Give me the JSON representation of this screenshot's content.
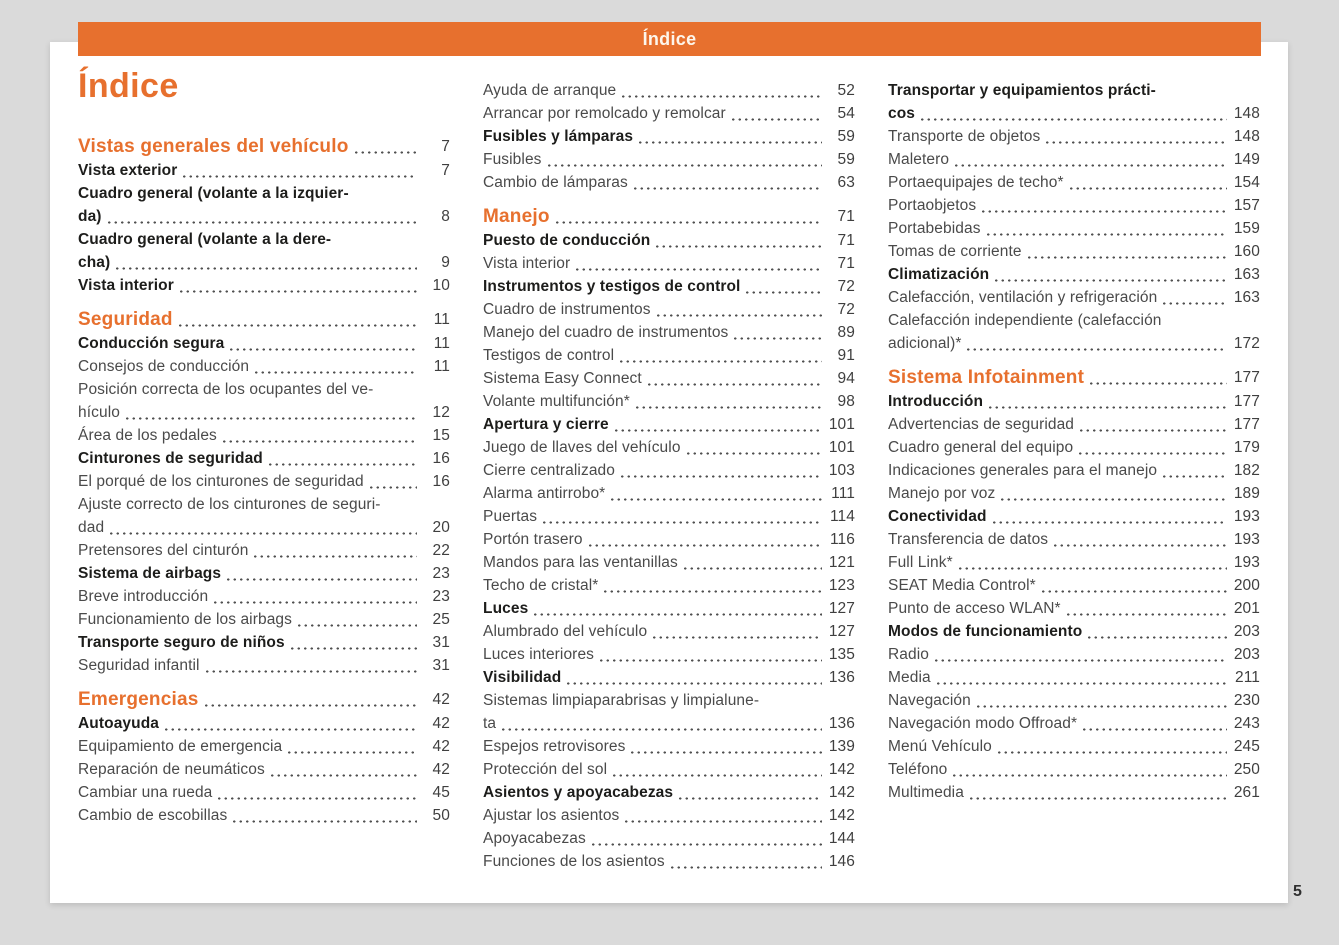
{
  "header_bar": {
    "label": "Índice"
  },
  "title": "Índice",
  "footer_page_number": "5",
  "colors": {
    "accent_orange": "#E7702E",
    "header_bar_text": "#FDF6EC",
    "body_text": "#4A4A4A",
    "bold_text": "#1D1D1B",
    "leader_dots": "#4F4F4F",
    "background": "#DADADA",
    "sheet": "#FFFFFF"
  },
  "columns": [
    {
      "blocks": [
        {
          "header": {
            "lines": [
              "Vistas generales del vehículo"
            ],
            "page": "7"
          },
          "entries": [
            {
              "lines": [
                "Vista exterior"
              ],
              "page": "7",
              "bold": true
            },
            {
              "lines": [
                "Cuadro general (volante a la izquier-",
                "da)"
              ],
              "page": "8",
              "bold": true
            },
            {
              "lines": [
                "Cuadro general (volante a la dere-",
                "cha)"
              ],
              "page": "9",
              "bold": true
            },
            {
              "lines": [
                "Vista interior"
              ],
              "page": "10",
              "bold": true
            }
          ]
        },
        {
          "header": {
            "lines": [
              "Seguridad"
            ],
            "page": "11"
          },
          "entries": [
            {
              "lines": [
                "Conducción segura"
              ],
              "page": "11",
              "bold": true
            },
            {
              "lines": [
                "Consejos de conducción"
              ],
              "page": "11"
            },
            {
              "lines": [
                "Posición correcta de los ocupantes del ve-",
                "hículo"
              ],
              "page": "12"
            },
            {
              "lines": [
                "Área de los pedales"
              ],
              "page": "15"
            },
            {
              "lines": [
                "Cinturones de seguridad"
              ],
              "page": "16",
              "bold": true
            },
            {
              "lines": [
                "El porqué de los cinturones de seguridad"
              ],
              "page": "16"
            },
            {
              "lines": [
                "Ajuste correcto de los cinturones de seguri-",
                "dad"
              ],
              "page": "20"
            },
            {
              "lines": [
                "Pretensores del cinturón"
              ],
              "page": "22"
            },
            {
              "lines": [
                "Sistema de airbags"
              ],
              "page": "23",
              "bold": true
            },
            {
              "lines": [
                "Breve introducción"
              ],
              "page": "23"
            },
            {
              "lines": [
                "Funcionamiento de los airbags"
              ],
              "page": "25"
            },
            {
              "lines": [
                "Transporte seguro de niños"
              ],
              "page": "31",
              "bold": true
            },
            {
              "lines": [
                "Seguridad infantil"
              ],
              "page": "31"
            }
          ]
        },
        {
          "header": {
            "lines": [
              "Emergencias"
            ],
            "page": "42"
          },
          "entries": [
            {
              "lines": [
                "Autoayuda"
              ],
              "page": "42",
              "bold": true
            },
            {
              "lines": [
                "Equipamiento de emergencia"
              ],
              "page": "42"
            },
            {
              "lines": [
                "Reparación de neumáticos"
              ],
              "page": "42"
            },
            {
              "lines": [
                "Cambiar una rueda"
              ],
              "page": "45"
            },
            {
              "lines": [
                "Cambio de escobillas"
              ],
              "page": "50"
            }
          ]
        }
      ]
    },
    {
      "blocks": [
        {
          "header": null,
          "entries": [
            {
              "lines": [
                "Ayuda de arranque"
              ],
              "page": "52"
            },
            {
              "lines": [
                "Arrancar por remolcado y remolcar"
              ],
              "page": "54"
            },
            {
              "lines": [
                "Fusibles y lámparas"
              ],
              "page": "59",
              "bold": true
            },
            {
              "lines": [
                "Fusibles"
              ],
              "page": "59"
            },
            {
              "lines": [
                "Cambio de lámparas"
              ],
              "page": "63"
            }
          ]
        },
        {
          "header": {
            "lines": [
              "Manejo"
            ],
            "page": "71"
          },
          "entries": [
            {
              "lines": [
                "Puesto de conducción"
              ],
              "page": "71",
              "bold": true
            },
            {
              "lines": [
                "Vista interior"
              ],
              "page": "71"
            },
            {
              "lines": [
                "Instrumentos y testigos de control"
              ],
              "page": "72",
              "bold": true
            },
            {
              "lines": [
                "Cuadro de instrumentos"
              ],
              "page": "72"
            },
            {
              "lines": [
                "Manejo del cuadro de instrumentos"
              ],
              "page": "89"
            },
            {
              "lines": [
                "Testigos de control"
              ],
              "page": "91"
            },
            {
              "lines": [
                "Sistema Easy Connect"
              ],
              "page": "94"
            },
            {
              "lines": [
                "Volante multifunción*"
              ],
              "page": "98"
            },
            {
              "lines": [
                "Apertura y cierre"
              ],
              "page": "101",
              "bold": true
            },
            {
              "lines": [
                "Juego de llaves del vehículo"
              ],
              "page": "101"
            },
            {
              "lines": [
                "Cierre centralizado"
              ],
              "page": "103"
            },
            {
              "lines": [
                "Alarma antirrobo*"
              ],
              "page": "111"
            },
            {
              "lines": [
                "Puertas"
              ],
              "page": "114"
            },
            {
              "lines": [
                "Portón trasero"
              ],
              "page": "116"
            },
            {
              "lines": [
                "Mandos para las ventanillas"
              ],
              "page": "121"
            },
            {
              "lines": [
                "Techo de cristal*"
              ],
              "page": "123"
            },
            {
              "lines": [
                "Luces"
              ],
              "page": "127",
              "bold": true
            },
            {
              "lines": [
                "Alumbrado del vehículo"
              ],
              "page": "127"
            },
            {
              "lines": [
                "Luces interiores"
              ],
              "page": "135"
            },
            {
              "lines": [
                "Visibilidad"
              ],
              "page": "136",
              "bold": true
            },
            {
              "lines": [
                "Sistemas limpiaparabrisas y limpialune-",
                "ta"
              ],
              "page": "136"
            },
            {
              "lines": [
                "Espejos retrovisores"
              ],
              "page": "139"
            },
            {
              "lines": [
                "Protección del sol"
              ],
              "page": "142"
            },
            {
              "lines": [
                "Asientos y apoyacabezas"
              ],
              "page": "142",
              "bold": true
            },
            {
              "lines": [
                "Ajustar los asientos"
              ],
              "page": "142"
            },
            {
              "lines": [
                "Apoyacabezas"
              ],
              "page": "144"
            },
            {
              "lines": [
                "Funciones de los asientos"
              ],
              "page": "146"
            }
          ]
        }
      ]
    },
    {
      "blocks": [
        {
          "header": null,
          "entries": [
            {
              "lines": [
                "Transportar y equipamientos prácti-",
                "cos"
              ],
              "page": "148",
              "bold": true
            },
            {
              "lines": [
                "Transporte de objetos"
              ],
              "page": "148"
            },
            {
              "lines": [
                "Maletero"
              ],
              "page": "149"
            },
            {
              "lines": [
                "Portaequipajes de techo*"
              ],
              "page": "154"
            },
            {
              "lines": [
                "Portaobjetos"
              ],
              "page": "157"
            },
            {
              "lines": [
                "Portabebidas"
              ],
              "page": "159"
            },
            {
              "lines": [
                "Tomas de corriente"
              ],
              "page": "160"
            },
            {
              "lines": [
                "Climatización"
              ],
              "page": "163",
              "bold": true
            },
            {
              "lines": [
                "Calefacción, ventilación y refrigeración"
              ],
              "page": "163"
            },
            {
              "lines": [
                "Calefacción independiente (calefacción",
                "adicional)*"
              ],
              "page": "172"
            }
          ]
        },
        {
          "header": {
            "lines": [
              "Sistema Infotainment"
            ],
            "page": "177"
          },
          "entries": [
            {
              "lines": [
                "Introducción"
              ],
              "page": "177",
              "bold": true
            },
            {
              "lines": [
                "Advertencias de seguridad"
              ],
              "page": "177"
            },
            {
              "lines": [
                "Cuadro general del equipo"
              ],
              "page": "179"
            },
            {
              "lines": [
                "Indicaciones generales para el manejo"
              ],
              "page": "182"
            },
            {
              "lines": [
                "Manejo por voz"
              ],
              "page": "189"
            },
            {
              "lines": [
                "Conectividad"
              ],
              "page": "193",
              "bold": true
            },
            {
              "lines": [
                "Transferencia de datos"
              ],
              "page": "193"
            },
            {
              "lines": [
                "Full Link*"
              ],
              "page": "193"
            },
            {
              "lines": [
                "SEAT Media Control*"
              ],
              "page": "200"
            },
            {
              "lines": [
                "Punto de acceso WLAN*"
              ],
              "page": "201"
            },
            {
              "lines": [
                "Modos de funcionamiento"
              ],
              "page": "203",
              "bold": true
            },
            {
              "lines": [
                "Radio"
              ],
              "page": "203"
            },
            {
              "lines": [
                "Media"
              ],
              "page": "211"
            },
            {
              "lines": [
                "Navegación"
              ],
              "page": "230"
            },
            {
              "lines": [
                "Navegación modo Offroad*"
              ],
              "page": "243"
            },
            {
              "lines": [
                "Menú Vehículo"
              ],
              "page": "245"
            },
            {
              "lines": [
                "Teléfono"
              ],
              "page": "250"
            },
            {
              "lines": [
                "Multimedia"
              ],
              "page": "261"
            }
          ]
        }
      ]
    }
  ]
}
